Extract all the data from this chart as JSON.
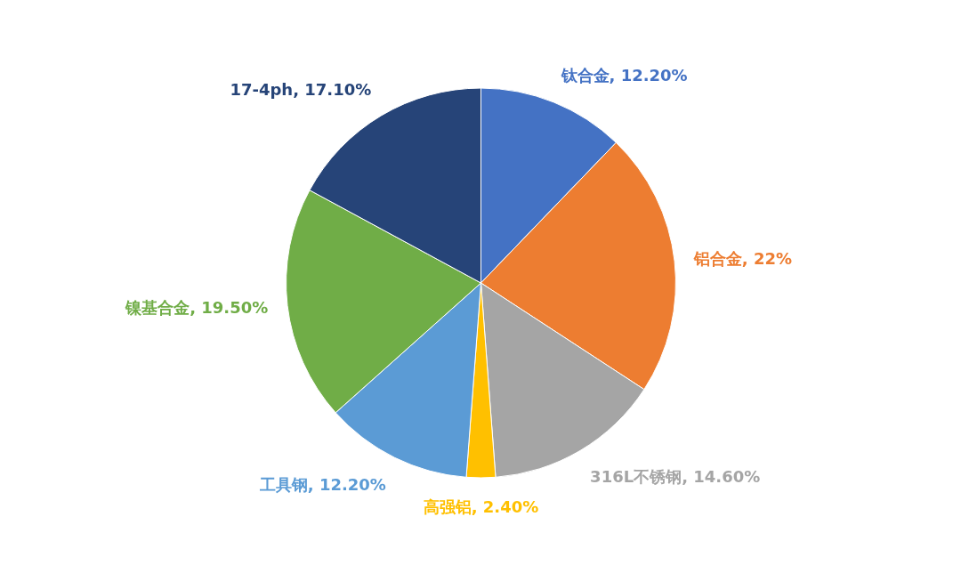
{
  "chart_data": {
    "type": "pie",
    "categories": [
      "钛合金",
      "铝合金",
      "316L不锈钢",
      "高强铝",
      "工具钢",
      "镍基合金",
      "17-4ph"
    ],
    "values": [
      12.2,
      22,
      14.6,
      2.4,
      12.2,
      19.5,
      17.1
    ],
    "value_labels": [
      "12.20%",
      "22%",
      "14.60%",
      "2.40%",
      "12.20%",
      "19.50%",
      "17.10%"
    ],
    "colors": [
      "#4472c4",
      "#ed7d31",
      "#a5a5a5",
      "#ffc000",
      "#5b9bd5",
      "#70ad47",
      "#264478"
    ]
  }
}
